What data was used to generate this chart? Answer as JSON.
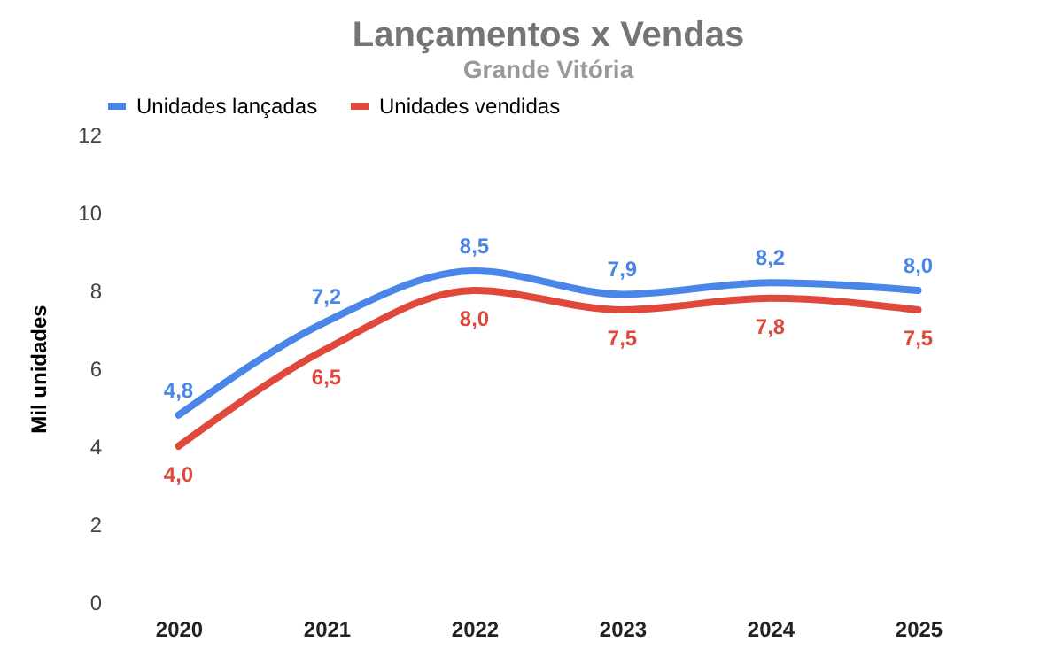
{
  "chart_data": {
    "type": "line",
    "title": "Lançamentos x Vendas",
    "subtitle": "Grande Vitória",
    "ylabel": "Mil unidades",
    "categories": [
      "2020",
      "2021",
      "2022",
      "2023",
      "2024",
      "2025"
    ],
    "series": [
      {
        "name": "Unidades lançadas",
        "color": "#4a86e8",
        "values": [
          4.8,
          7.2,
          8.5,
          7.9,
          8.2,
          8.0
        ],
        "value_labels": [
          "4,8",
          "7,2",
          "8,5",
          "7,9",
          "8,2",
          "8,0"
        ]
      },
      {
        "name": "Unidades vendidas",
        "color": "#e0483b",
        "values": [
          4.0,
          6.5,
          8.0,
          7.5,
          7.8,
          7.5
        ],
        "value_labels": [
          "4,0",
          "6,5",
          "8,0",
          "7,5",
          "7,8",
          "7,5"
        ]
      }
    ],
    "ylim": [
      0,
      12
    ],
    "yticks": [
      0,
      2,
      4,
      6,
      8,
      10,
      12
    ],
    "grid": false,
    "legend": "top",
    "marker": "none",
    "line_style": "solid"
  }
}
